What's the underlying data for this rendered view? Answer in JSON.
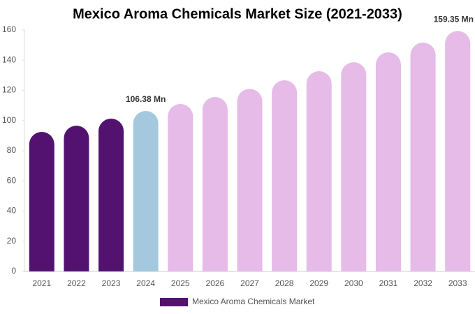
{
  "chart_data": {
    "type": "bar",
    "title": "Mexico Aroma Chemicals Market Size (2021-2033)",
    "categories": [
      "2021",
      "2022",
      "2023",
      "2024",
      "2025",
      "2026",
      "2027",
      "2028",
      "2029",
      "2030",
      "2031",
      "2032",
      "2033"
    ],
    "series": [
      {
        "name": "Mexico Aroma Chemicals Market",
        "color": "#541270",
        "colors": [
          "#541270",
          "#541270",
          "#541270",
          "#a4c9de",
          "#e6bbe8",
          "#e6bbe8",
          "#e6bbe8",
          "#e6bbe8",
          "#e6bbe8",
          "#e6bbe8",
          "#e6bbe8",
          "#e6bbe8",
          "#e6bbe8"
        ],
        "values": [
          92.5,
          96.6,
          101.3,
          106.38,
          111,
          115.6,
          121,
          126.7,
          132.7,
          138.7,
          145.2,
          151.7,
          159.35
        ],
        "value_labels": [
          null,
          null,
          null,
          "106.38 Mn",
          null,
          null,
          null,
          null,
          null,
          null,
          null,
          null,
          "159.35 Mn"
        ]
      }
    ],
    "ylim": [
      0,
      160
    ],
    "yticks": [
      0,
      20,
      40,
      60,
      80,
      100,
      120,
      140,
      160
    ],
    "grid": false
  }
}
